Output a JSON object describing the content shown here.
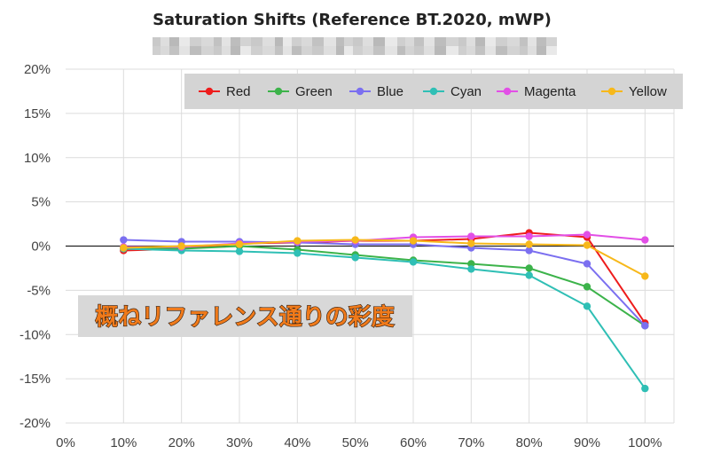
{
  "chart_data": {
    "type": "line",
    "title": "Saturation Shifts (Reference BT.2020, mWP)",
    "subtitle_redacted": true,
    "x": [
      0.1,
      0.2,
      0.3,
      0.4,
      0.5,
      0.6,
      0.7,
      0.8,
      0.9,
      1.0
    ],
    "xticks": [
      "0%",
      "10%",
      "20%",
      "30%",
      "40%",
      "50%",
      "60%",
      "70%",
      "80%",
      "90%",
      "100%"
    ],
    "yticks": [
      "20%",
      "15%",
      "10%",
      "5%",
      "0%",
      "-5%",
      "-10%",
      "-15%",
      "-20%"
    ],
    "xlim": [
      0,
      1.05
    ],
    "ylim": [
      -20,
      20
    ],
    "grid": true,
    "legend_position": "top-right",
    "series": [
      {
        "name": "Red",
        "color": "#ee1c1c",
        "values": [
          -0.5,
          -0.3,
          0.3,
          0.4,
          0.6,
          0.6,
          0.8,
          1.5,
          1.0,
          -8.7
        ]
      },
      {
        "name": "Green",
        "color": "#3cb34a",
        "values": [
          -0.2,
          -0.3,
          0.0,
          -0.4,
          -1.0,
          -1.6,
          -2.0,
          -2.5,
          -4.6,
          -9.0
        ]
      },
      {
        "name": "Blue",
        "color": "#7b6ff0",
        "values": [
          0.7,
          0.5,
          0.5,
          0.4,
          0.2,
          0.2,
          -0.2,
          -0.5,
          -2.0,
          -9.0
        ]
      },
      {
        "name": "Cyan",
        "color": "#2fbfb5",
        "values": [
          -0.3,
          -0.5,
          -0.6,
          -0.8,
          -1.3,
          -1.8,
          -2.6,
          -3.3,
          -6.8,
          -16.1
        ]
      },
      {
        "name": "Magenta",
        "color": "#e24fe6",
        "values": [
          -0.1,
          -0.1,
          0.3,
          0.5,
          0.6,
          1.0,
          1.1,
          1.1,
          1.3,
          0.7
        ]
      },
      {
        "name": "Yellow",
        "color": "#f7b81a",
        "values": [
          -0.2,
          0.0,
          0.2,
          0.6,
          0.7,
          0.6,
          0.3,
          0.2,
          0.1,
          -3.4
        ]
      }
    ],
    "annotation": "概ねリファレンス通りの彩度"
  }
}
